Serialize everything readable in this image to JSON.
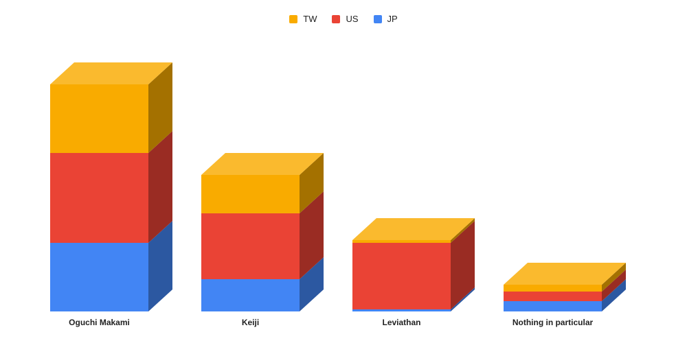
{
  "chart_data": {
    "type": "bar",
    "stacked": true,
    "style": "3d",
    "categories": [
      "Oguchi Makami",
      "Keiji",
      "Leviathan",
      "Nothing in particular"
    ],
    "series": [
      {
        "name": "JP",
        "color": "#4285f4",
        "values": [
          100,
          47,
          3,
          15
        ]
      },
      {
        "name": "US",
        "color": "#ea4335",
        "values": [
          131,
          96,
          97,
          14
        ]
      },
      {
        "name": "TW",
        "color": "#f9ab00",
        "values": [
          100,
          56,
          4,
          10
        ]
      }
    ],
    "legend_order": [
      "TW",
      "US",
      "JP"
    ],
    "legend_position": "top",
    "ylim": [
      0,
      331
    ],
    "grid": false,
    "title": "",
    "xlabel": "",
    "ylabel": ""
  }
}
